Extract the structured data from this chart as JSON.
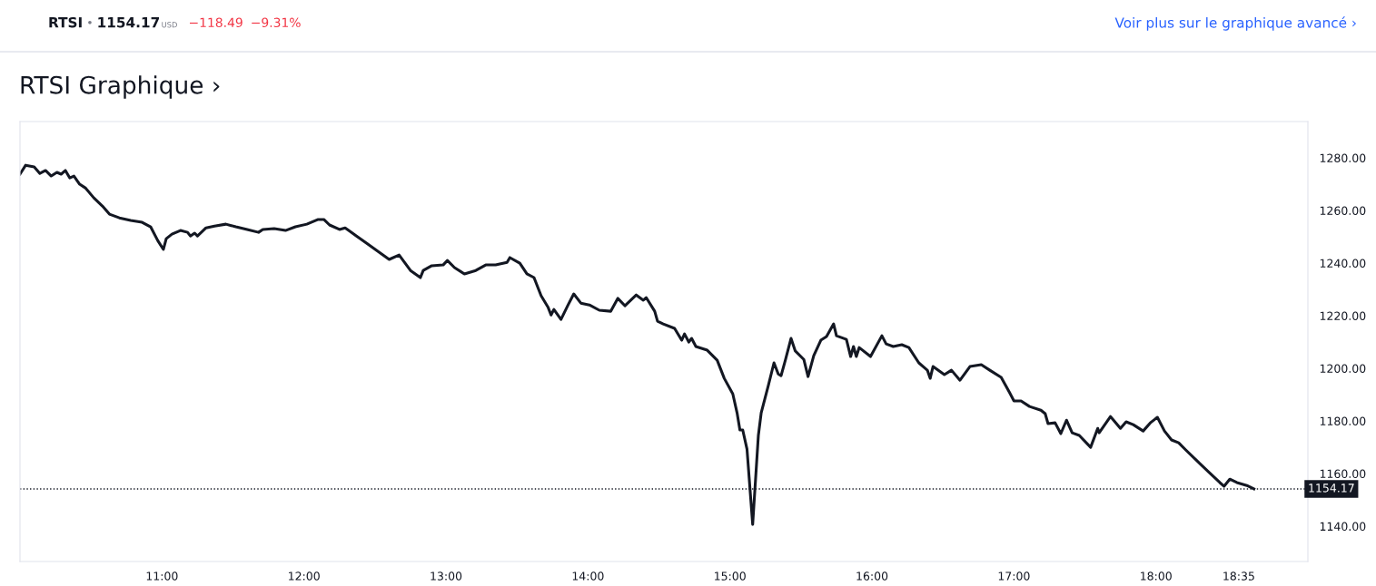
{
  "chart_data": {
    "type": "line",
    "title": "RTSI Graphique ›",
    "annotations": [
      "RTSI",
      "•",
      "1154.17",
      "USD",
      "−118.49",
      "−9.31%",
      "Voir plus sur le graphique avancé ›"
    ],
    "x": [
      10.0,
      10.04,
      10.1,
      10.14,
      10.18,
      10.22,
      10.26,
      10.29,
      10.32,
      10.35,
      10.38,
      10.42,
      10.46,
      10.52,
      10.58,
      10.63,
      10.7,
      10.78,
      10.86,
      10.92,
      10.97,
      11.01,
      11.03,
      11.07,
      11.13,
      11.18,
      11.2,
      11.23,
      11.25,
      11.31,
      11.37,
      11.45,
      11.52,
      11.6,
      11.68,
      11.71,
      11.79,
      11.87,
      11.94,
      12.02,
      12.1,
      12.14,
      12.18,
      12.25,
      12.29,
      12.37,
      12.44,
      12.52,
      12.6,
      12.67,
      12.75,
      12.82,
      12.84,
      12.9,
      12.98,
      13.01,
      13.06,
      13.13,
      13.21,
      13.28,
      13.35,
      13.43,
      13.45,
      13.52,
      13.57,
      13.62,
      13.67,
      13.72,
      13.74,
      13.76,
      13.81,
      13.86,
      13.9,
      13.95,
      14.01,
      14.08,
      14.16,
      14.21,
      14.26,
      14.34,
      14.39,
      14.41,
      14.47,
      14.49,
      14.53,
      14.61,
      14.66,
      14.68,
      14.71,
      14.73,
      14.76,
      14.84,
      14.91,
      14.96,
      15.02,
      15.05,
      15.07,
      15.09,
      15.12,
      15.16,
      15.2,
      15.22,
      15.27,
      15.31,
      15.34,
      15.36,
      15.39,
      15.43,
      15.46,
      15.52,
      15.55,
      15.59,
      15.64,
      15.68,
      15.73,
      15.75,
      15.82,
      15.85,
      15.87,
      15.89,
      15.91,
      15.99,
      16.07,
      16.1,
      16.15,
      16.21,
      16.26,
      16.33,
      16.39,
      16.41,
      16.43,
      16.51,
      16.56,
      16.62,
      16.69,
      16.77,
      16.83,
      16.91,
      16.97,
      17.0,
      17.05,
      17.11,
      17.19,
      17.22,
      17.24,
      17.29,
      17.33,
      17.37,
      17.41,
      17.46,
      17.54,
      17.59,
      17.6,
      17.68,
      17.75,
      17.79,
      17.84,
      17.91,
      17.96,
      18.01,
      18.06,
      18.11,
      18.16,
      18.21,
      18.29,
      18.37,
      18.45,
      18.48,
      18.52,
      18.57,
      18.64,
      18.69
    ],
    "series": [
      {
        "color": "#131722",
        "values": [
          1273.8,
          1277.2,
          1276.6,
          1274.1,
          1275.2,
          1273.1,
          1274.5,
          1273.8,
          1275.2,
          1272.4,
          1273.1,
          1270.0,
          1268.6,
          1264.8,
          1261.7,
          1258.6,
          1257.2,
          1256.2,
          1255.5,
          1253.8,
          1248.6,
          1245.2,
          1249.3,
          1251.0,
          1252.4,
          1251.7,
          1250.3,
          1251.4,
          1250.3,
          1253.4,
          1254.1,
          1254.8,
          1253.8,
          1252.8,
          1251.7,
          1252.8,
          1253.1,
          1252.4,
          1253.8,
          1254.8,
          1256.6,
          1256.6,
          1254.5,
          1252.8,
          1253.4,
          1250.3,
          1247.6,
          1244.5,
          1241.4,
          1243.1,
          1237.2,
          1234.5,
          1237.2,
          1239.0,
          1239.3,
          1241.0,
          1238.3,
          1235.9,
          1237.2,
          1239.3,
          1239.3,
          1240.3,
          1242.1,
          1240.0,
          1235.9,
          1234.5,
          1227.6,
          1223.1,
          1220.3,
          1222.4,
          1218.6,
          1224.1,
          1228.3,
          1224.8,
          1224.1,
          1222.1,
          1221.7,
          1226.6,
          1223.8,
          1227.9,
          1225.9,
          1226.9,
          1221.7,
          1217.9,
          1216.9,
          1215.2,
          1210.7,
          1213.1,
          1210.0,
          1211.4,
          1208.3,
          1206.9,
          1203.1,
          1196.2,
          1190.3,
          1183.1,
          1176.6,
          1176.6,
          1169.3,
          1140.7,
          1174.5,
          1183.1,
          1193.4,
          1202.1,
          1197.9,
          1197.2,
          1203.1,
          1211.4,
          1206.6,
          1203.4,
          1196.9,
          1204.8,
          1210.7,
          1212.1,
          1216.9,
          1212.4,
          1211.0,
          1204.5,
          1208.3,
          1204.5,
          1207.9,
          1204.5,
          1212.4,
          1209.3,
          1208.3,
          1209.0,
          1207.9,
          1202.1,
          1199.3,
          1196.2,
          1200.7,
          1197.6,
          1199.3,
          1195.5,
          1200.7,
          1201.4,
          1199.3,
          1196.6,
          1190.7,
          1187.6,
          1187.6,
          1185.5,
          1184.1,
          1182.8,
          1179.0,
          1179.3,
          1175.2,
          1180.3,
          1175.5,
          1174.5,
          1170.0,
          1177.2,
          1175.5,
          1181.7,
          1177.2,
          1179.7,
          1178.6,
          1176.2,
          1179.3,
          1181.4,
          1176.2,
          1172.8,
          1171.7,
          1169.0,
          1164.8,
          1160.7,
          1156.6,
          1155.2,
          1157.9,
          1156.6,
          1155.5,
          1154.2
        ]
      }
    ],
    "xlim": [
      10.0,
      19.07
    ],
    "xticks": [
      {
        "value": 11,
        "label": "11:00"
      },
      {
        "value": 12,
        "label": "12:00"
      },
      {
        "value": 13,
        "label": "13:00"
      },
      {
        "value": 14,
        "label": "14:00"
      },
      {
        "value": 15,
        "label": "15:00"
      },
      {
        "value": 16,
        "label": "16:00"
      },
      {
        "value": 17,
        "label": "17:00"
      },
      {
        "value": 18,
        "label": "18:00"
      },
      {
        "value": 18.5833,
        "label": "18:35"
      }
    ],
    "ylim": [
      1126.6,
      1293.8
    ],
    "yticks": [
      {
        "value": 1140,
        "label": "1140.00"
      },
      {
        "value": 1160,
        "label": "1160.00"
      },
      {
        "value": 1180,
        "label": "1180.00"
      },
      {
        "value": 1200,
        "label": "1200.00"
      },
      {
        "value": 1220,
        "label": "1220.00"
      },
      {
        "value": 1240,
        "label": "1240.00"
      },
      {
        "value": 1260,
        "label": "1260.00"
      },
      {
        "value": 1280,
        "label": "1280.00"
      }
    ],
    "ref_lines": [
      {
        "axis": "y",
        "value": 1154.17,
        "label": "1154.17",
        "color": "#131722",
        "line_style": "dotted"
      }
    ],
    "grid": false,
    "legend": false,
    "marker": "none",
    "line_style": "solid"
  }
}
